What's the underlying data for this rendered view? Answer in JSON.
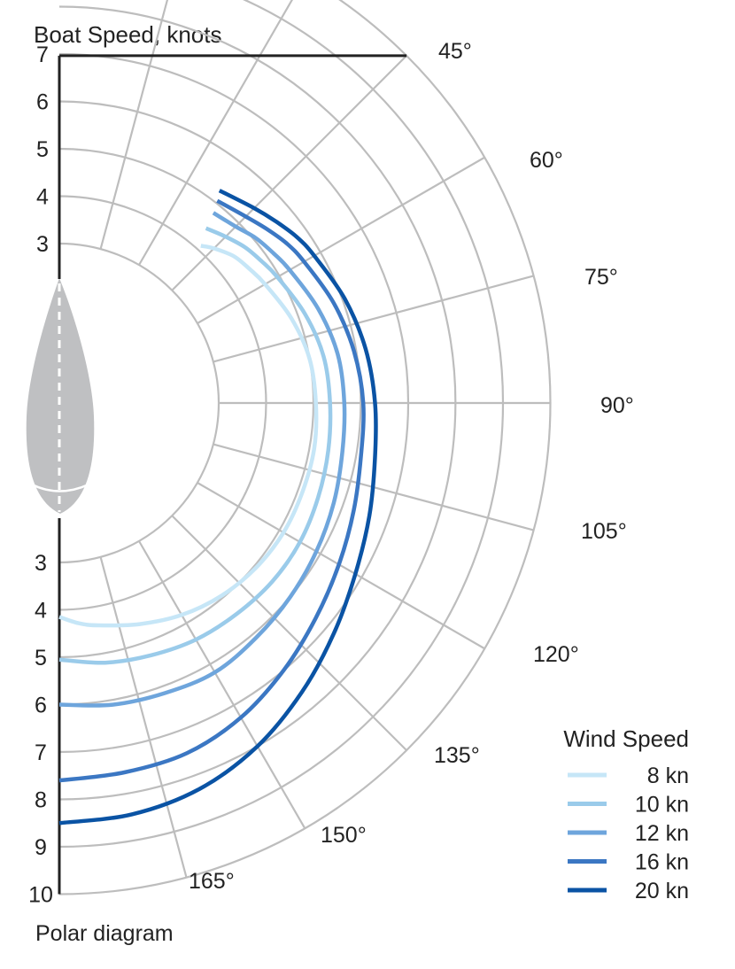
{
  "chart_data": {
    "type": "polar-line",
    "title": "Polar diagram",
    "ylabel": "Boat Speed, knots",
    "upper_axis_ticks": [
      "7",
      "6",
      "5",
      "4",
      "3"
    ],
    "lower_axis_ticks": [
      "3",
      "4",
      "5",
      "6",
      "7",
      "8",
      "9",
      "10"
    ],
    "angle_ticks": [
      {
        "deg": 45,
        "label": "45°"
      },
      {
        "deg": 60,
        "label": "60°"
      },
      {
        "deg": 75,
        "label": "75°"
      },
      {
        "deg": 90,
        "label": "90°"
      },
      {
        "deg": 105,
        "label": "105°"
      },
      {
        "deg": 120,
        "label": "120°"
      },
      {
        "deg": 135,
        "label": "135°"
      },
      {
        "deg": 150,
        "label": "150°"
      },
      {
        "deg": 165,
        "label": "165°"
      }
    ],
    "grid": true,
    "legend": {
      "title": "Wind Speed",
      "placement": "bottom-right"
    },
    "series": [
      {
        "name": "8 kn",
        "color": "#c6e6f7",
        "points": [
          [
            42,
            4.1
          ],
          [
            45,
            4.25
          ],
          [
            50,
            4.45
          ],
          [
            55,
            4.55
          ],
          [
            60,
            4.65
          ],
          [
            70,
            4.85
          ],
          [
            80,
            5.0
          ],
          [
            90,
            5.05
          ],
          [
            100,
            5.1
          ],
          [
            110,
            5.1
          ],
          [
            120,
            5.1
          ],
          [
            130,
            5.05
          ],
          [
            140,
            4.95
          ],
          [
            150,
            4.8
          ],
          [
            160,
            4.6
          ],
          [
            170,
            4.4
          ],
          [
            175,
            4.3
          ],
          [
            180,
            4.15
          ]
        ]
      },
      {
        "name": "10 kn",
        "color": "#9acbea",
        "points": [
          [
            40,
            4.45
          ],
          [
            45,
            4.6
          ],
          [
            50,
            4.75
          ],
          [
            55,
            4.85
          ],
          [
            60,
            4.95
          ],
          [
            70,
            5.15
          ],
          [
            80,
            5.3
          ],
          [
            90,
            5.35
          ],
          [
            100,
            5.4
          ],
          [
            110,
            5.45
          ],
          [
            120,
            5.5
          ],
          [
            130,
            5.5
          ],
          [
            140,
            5.45
          ],
          [
            150,
            5.4
          ],
          [
            160,
            5.3
          ],
          [
            170,
            5.2
          ],
          [
            180,
            5.05
          ]
        ]
      },
      {
        "name": "12 kn",
        "color": "#6ea5dc",
        "points": [
          [
            39,
            4.8
          ],
          [
            45,
            4.9
          ],
          [
            50,
            5.05
          ],
          [
            55,
            5.15
          ],
          [
            60,
            5.25
          ],
          [
            70,
            5.45
          ],
          [
            80,
            5.6
          ],
          [
            90,
            5.65
          ],
          [
            100,
            5.7
          ],
          [
            110,
            5.8
          ],
          [
            120,
            5.9
          ],
          [
            130,
            6.0
          ],
          [
            140,
            6.1
          ],
          [
            150,
            6.2
          ],
          [
            160,
            6.15
          ],
          [
            170,
            6.1
          ],
          [
            180,
            6.0
          ]
        ]
      },
      {
        "name": "16 kn",
        "color": "#3b77c3",
        "points": [
          [
            38,
            5.05
          ],
          [
            45,
            5.2
          ],
          [
            50,
            5.35
          ],
          [
            55,
            5.5
          ],
          [
            60,
            5.6
          ],
          [
            70,
            5.8
          ],
          [
            80,
            5.95
          ],
          [
            90,
            6.05
          ],
          [
            100,
            6.1
          ],
          [
            110,
            6.25
          ],
          [
            120,
            6.45
          ],
          [
            130,
            6.7
          ],
          [
            140,
            7.0
          ],
          [
            150,
            7.3
          ],
          [
            160,
            7.5
          ],
          [
            170,
            7.55
          ],
          [
            180,
            7.6
          ]
        ]
      },
      {
        "name": "20 kn",
        "color": "#0a53a4",
        "points": [
          [
            37,
            5.25
          ],
          [
            45,
            5.45
          ],
          [
            50,
            5.6
          ],
          [
            55,
            5.75
          ],
          [
            60,
            5.85
          ],
          [
            70,
            6.05
          ],
          [
            80,
            6.2
          ],
          [
            90,
            6.3
          ],
          [
            100,
            6.4
          ],
          [
            110,
            6.6
          ],
          [
            120,
            6.85
          ],
          [
            130,
            7.2
          ],
          [
            140,
            7.6
          ],
          [
            150,
            8.0
          ],
          [
            160,
            8.3
          ],
          [
            170,
            8.45
          ],
          [
            180,
            8.5
          ]
        ]
      }
    ]
  }
}
